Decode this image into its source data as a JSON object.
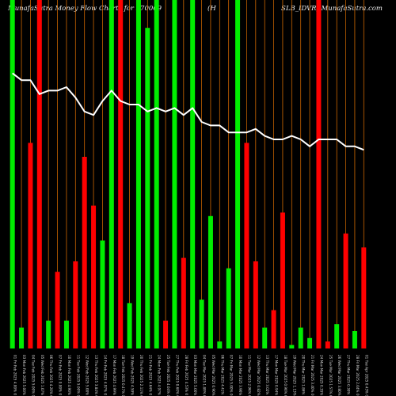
{
  "title": {
    "left": "MunafaSutra  Money Flow  Charts for 570069",
    "middle": "(H",
    "right": "SLB_IDVR) MunafaSutra.com"
  },
  "chart_data": {
    "type": "bar",
    "title": "MunafaSutra  Money Flow  Charts for 570069 (HSLB_IDVR) MunafaSutra.com",
    "xlabel": "",
    "ylabel": "",
    "ylim": [
      0,
      100
    ],
    "grid": false,
    "colors": {
      "up": "#00ee00",
      "down": "#ff0000",
      "gridline": "#cc6600",
      "line": "#ffffff",
      "background": "#000000"
    },
    "categories": [
      "01 Fri Feb 2025 4.00% 0",
      "03 Mon Feb 2025 5.00% 0",
      "04 Tue Feb 2025 5.00% 0",
      "05 Wed Feb 2025 1.07% 0",
      "06 Thu Feb 2025 4.20% 0",
      "07 Fri Feb 2025 0.00% 0",
      "10 Mon Feb 2025 4.90% 0",
      "11 Tue Feb 2025 5.00% 0",
      "12 Wed Feb 2025 5.00% 0",
      "13 Thu Feb 2025 3.84% 0",
      "14 Fri Feb 2025 4.97% 0",
      "17 Mon Feb 2025 4.99% 0",
      "18 Tue Feb 2025 0.47% 0",
      "19 Wed Feb 2025 4.59% 0",
      "20 Thu Feb 2025 2.11% 0",
      "21 Fri Feb 2025 4.64% 0",
      "24 Mon Feb 2025 4.97% 0",
      "25 Tue Feb 2025 4.04% 0",
      "27 Thu Feb 2025 0.60% 0",
      "28 Fri Feb 2025 4.53% 0",
      "03 Mon Mar 2025 5.00% 0",
      "04 Tue Mar 2025 1.89% 0",
      "05 Wed Mar 2025 0.90% 0",
      "06 Thu Mar 2025 4.41% 0",
      "07 Fri Mar 2025 5.00% 0",
      "10 Mon Mar 2025 3.96% 0",
      "11 Tue Mar 2025 2.96% 0",
      "12 Wed Mar 2025 0.82% 0",
      "13 Thu Mar 2025 3.02% 0",
      "17 Mon Mar 2025 0.94% 0",
      "18 Tue Mar 2025 0.90% 0",
      "19 Wed Mar 2025 1.13% 0",
      "20 Thu Mar 2025 1.86% 0",
      "21 Fri Mar 2025 3.40% 0",
      "24 Mon Mar 2025 0.35% 0",
      "25 Tue Mar 2025 1.57% 0",
      "26 Wed Mar 2025 3.80% 0",
      "27 Thu Mar 2025 0.30% 0",
      "28 Fri Mar 2025 2.04% 0",
      "01 Tue Apr 2025 0.43% 0"
    ],
    "bars": [
      {
        "dir": "up",
        "value": 100
      },
      {
        "dir": "up",
        "value": 6
      },
      {
        "dir": "down",
        "value": 59
      },
      {
        "dir": "down",
        "value": 100
      },
      {
        "dir": "up",
        "value": 8
      },
      {
        "dir": "down",
        "value": 22
      },
      {
        "dir": "up",
        "value": 8
      },
      {
        "dir": "down",
        "value": 25
      },
      {
        "dir": "down",
        "value": 55
      },
      {
        "dir": "down",
        "value": 41
      },
      {
        "dir": "up",
        "value": 31
      },
      {
        "dir": "up",
        "value": 100
      },
      {
        "dir": "down",
        "value": 100
      },
      {
        "dir": "up",
        "value": 13
      },
      {
        "dir": "up",
        "value": 100
      },
      {
        "dir": "up",
        "value": 92
      },
      {
        "dir": "up",
        "value": 100
      },
      {
        "dir": "down",
        "value": 8
      },
      {
        "dir": "up",
        "value": 100
      },
      {
        "dir": "down",
        "value": 26
      },
      {
        "dir": "up",
        "value": 100
      },
      {
        "dir": "up",
        "value": 14
      },
      {
        "dir": "up",
        "value": 38
      },
      {
        "dir": "up",
        "value": 2
      },
      {
        "dir": "up",
        "value": 23
      },
      {
        "dir": "up",
        "value": 100
      },
      {
        "dir": "down",
        "value": 59
      },
      {
        "dir": "down",
        "value": 25
      },
      {
        "dir": "up",
        "value": 6
      },
      {
        "dir": "down",
        "value": 11
      },
      {
        "dir": "down",
        "value": 39
      },
      {
        "dir": "up",
        "value": 1
      },
      {
        "dir": "up",
        "value": 6
      },
      {
        "dir": "up",
        "value": 3
      },
      {
        "dir": "down",
        "value": 100
      },
      {
        "dir": "down",
        "value": 2
      },
      {
        "dir": "up",
        "value": 7
      },
      {
        "dir": "down",
        "value": 33
      },
      {
        "dir": "up",
        "value": 5
      },
      {
        "dir": "down",
        "value": 29
      }
    ],
    "line": [
      79,
      77,
      77,
      73,
      74,
      74,
      75,
      72,
      68,
      67,
      71,
      74,
      71,
      70,
      70,
      68,
      69,
      68,
      69,
      67,
      69,
      65,
      64,
      64,
      62,
      62,
      62,
      63,
      61,
      60,
      60,
      61,
      60,
      58,
      60,
      60,
      60,
      58,
      58,
      57
    ]
  }
}
